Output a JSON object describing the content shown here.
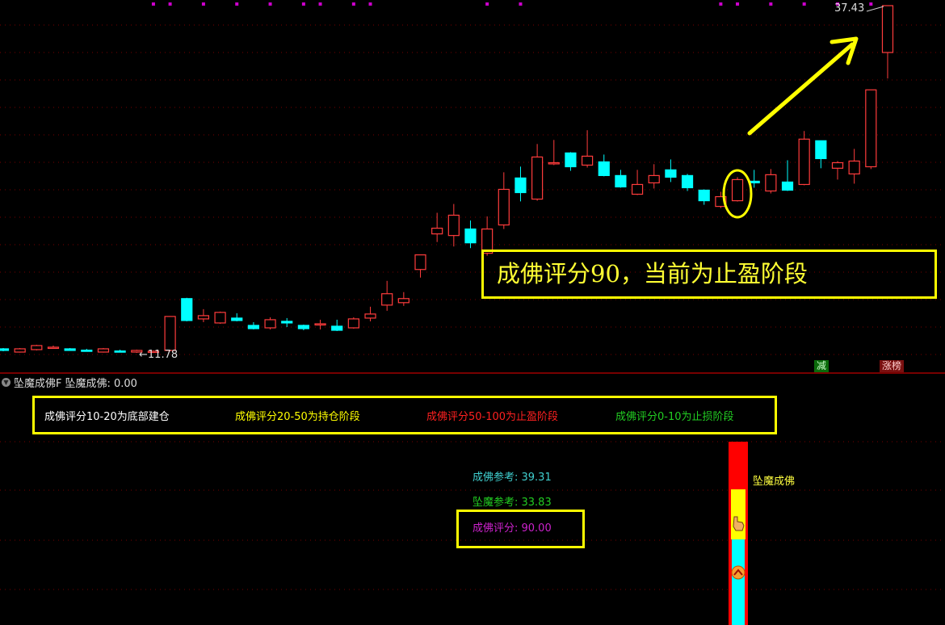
{
  "indicator": {
    "name": "坠魔成佛F",
    "value_label": "坠魔成佛: 0.00",
    "legend": [
      {
        "text": "成佛评分10-20为底部建仓",
        "color": "#ffffff"
      },
      {
        "text": "成佛评分20-50为持仓阶段",
        "color": "#ffff00"
      },
      {
        "text": "成佛评分50-100为止盈阶段",
        "color": "#ff2020"
      },
      {
        "text": "成佛评分0-10为止损阶段",
        "color": "#22cc22"
      }
    ],
    "reference_buy": "成佛参考: 39.31",
    "reference_sell": "坠魔参考: 33.83",
    "score": "成佛评分: 90.00",
    "bar_label": "坠魔成佛",
    "bar_segments": [
      "#ff0000",
      "#ffff00",
      "#00ffff"
    ]
  },
  "annotation": {
    "callout": "成佛评分90，当前为止盈阶段",
    "color": "#ffff00"
  },
  "badges": {
    "reduce": "减",
    "limit_up": "涨榜"
  },
  "colors": {
    "up": "#ff3c3c",
    "down": "#00ffff",
    "grid": "#7a0000",
    "marker": "#cc00cc"
  },
  "chart_data": {
    "type": "candlestick",
    "ohlc_order": [
      "open",
      "high",
      "low",
      "close"
    ],
    "low_label": "11.78",
    "high_label": "37.43",
    "ylim": [
      11.78,
      37.43
    ],
    "grid": true,
    "candles": [
      [
        12.08,
        12.14,
        11.9,
        11.96
      ],
      [
        11.84,
        12.14,
        11.8,
        12.08
      ],
      [
        12.02,
        12.38,
        11.96,
        12.32
      ],
      [
        12.14,
        12.32,
        12.08,
        12.2
      ],
      [
        12.08,
        12.14,
        11.96,
        11.96
      ],
      [
        11.98,
        12.08,
        11.9,
        11.96
      ],
      [
        11.84,
        12.14,
        11.8,
        12.08
      ],
      [
        11.92,
        12.02,
        11.84,
        11.9
      ],
      [
        11.84,
        12.02,
        11.78,
        11.96
      ],
      [
        11.84,
        11.96,
        11.8,
        11.9
      ],
      [
        11.96,
        14.5,
        11.9,
        14.47
      ],
      [
        15.79,
        15.85,
        14.11,
        14.17
      ],
      [
        14.29,
        15.01,
        14.05,
        14.53
      ],
      [
        13.99,
        14.83,
        13.93,
        14.77
      ],
      [
        14.35,
        14.71,
        14.11,
        14.17
      ],
      [
        13.81,
        14.05,
        13.51,
        13.57
      ],
      [
        13.63,
        14.41,
        13.51,
        14.23
      ],
      [
        14.11,
        14.35,
        13.69,
        13.99
      ],
      [
        13.81,
        13.87,
        13.45,
        13.57
      ],
      [
        13.87,
        14.23,
        13.51,
        13.93
      ],
      [
        13.75,
        14.23,
        13.39,
        13.45
      ],
      [
        13.63,
        14.41,
        13.57,
        14.29
      ],
      [
        14.35,
        15.19,
        14.11,
        14.65
      ],
      [
        15.31,
        17.1,
        14.89,
        16.15
      ],
      [
        15.49,
        16.27,
        15.25,
        15.79
      ],
      [
        17.94,
        19.02,
        17.34,
        19.02
      ],
      [
        20.57,
        22.13,
        19.97,
        20.99
      ],
      [
        20.45,
        22.78,
        19.64,
        21.95
      ],
      [
        20.93,
        21.56,
        19.52,
        19.91
      ],
      [
        19.14,
        21.86,
        18.96,
        20.93
      ],
      [
        21.23,
        25.12,
        20.93,
        23.86
      ],
      [
        24.7,
        25.54,
        22.97,
        23.62
      ],
      [
        23.14,
        27.21,
        23.02,
        26.25
      ],
      [
        25.77,
        27.51,
        25.65,
        25.83
      ],
      [
        26.55,
        26.61,
        25.23,
        25.53
      ],
      [
        25.65,
        28.23,
        25.47,
        26.31
      ],
      [
        25.89,
        26.43,
        24.82,
        24.88
      ],
      [
        24.88,
        25.3,
        23.98,
        24.04
      ],
      [
        23.5,
        25.3,
        23.44,
        24.22
      ],
      [
        24.34,
        25.72,
        23.92,
        24.88
      ],
      [
        25.3,
        26.07,
        24.4,
        24.76
      ],
      [
        24.88,
        25.0,
        23.74,
        23.98
      ],
      [
        23.8,
        23.86,
        22.72,
        23.02
      ],
      [
        22.6,
        23.68,
        22.48,
        23.32
      ],
      [
        23.02,
        24.76,
        22.96,
        24.58
      ],
      [
        24.46,
        25.3,
        23.98,
        24.34
      ],
      [
        23.74,
        25.36,
        23.56,
        24.94
      ],
      [
        24.4,
        26.01,
        23.74,
        23.8
      ],
      [
        24.22,
        28.17,
        24.16,
        27.57
      ],
      [
        27.45,
        27.45,
        25.42,
        26.13
      ],
      [
        25.42,
        25.95,
        24.58,
        25.83
      ],
      [
        25.0,
        26.85,
        24.28,
        25.95
      ],
      [
        25.53,
        31.21,
        25.36,
        31.21
      ],
      [
        33.97,
        37.43,
        32.05,
        37.43
      ]
    ],
    "highlighted_candle_index": 44
  }
}
